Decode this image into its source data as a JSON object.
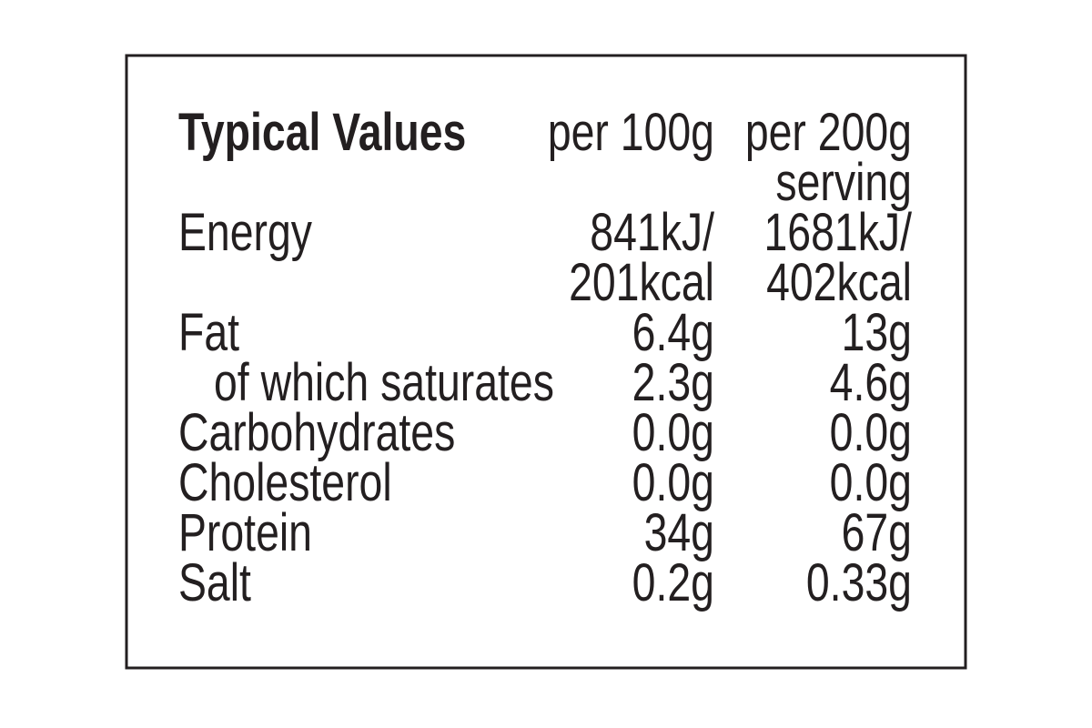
{
  "header": {
    "title": "Typical Values",
    "columns": [
      [
        "per 100g"
      ],
      [
        "per 200g",
        "serving"
      ]
    ]
  },
  "rows": [
    {
      "label": "Energy",
      "values": [
        [
          "841kJ/",
          "201kcal"
        ],
        [
          "1681kJ/",
          "402kcal"
        ]
      ]
    },
    {
      "label": "Fat",
      "values": [
        [
          "6.4g"
        ],
        [
          "13g"
        ]
      ]
    },
    {
      "label": "of which saturates",
      "indent": true,
      "values": [
        [
          "2.3g"
        ],
        [
          "4.6g"
        ]
      ]
    },
    {
      "label": "Carbohydrates",
      "values": [
        [
          "0.0g"
        ],
        [
          "0.0g"
        ]
      ]
    },
    {
      "label": "Cholesterol",
      "values": [
        [
          "0.0g"
        ],
        [
          "0.0g"
        ]
      ]
    },
    {
      "label": "Protein",
      "values": [
        [
          "34g"
        ],
        [
          "67g"
        ]
      ]
    },
    {
      "label": "Salt",
      "values": [
        [
          "0.2g"
        ],
        [
          "0.33g"
        ]
      ]
    }
  ]
}
